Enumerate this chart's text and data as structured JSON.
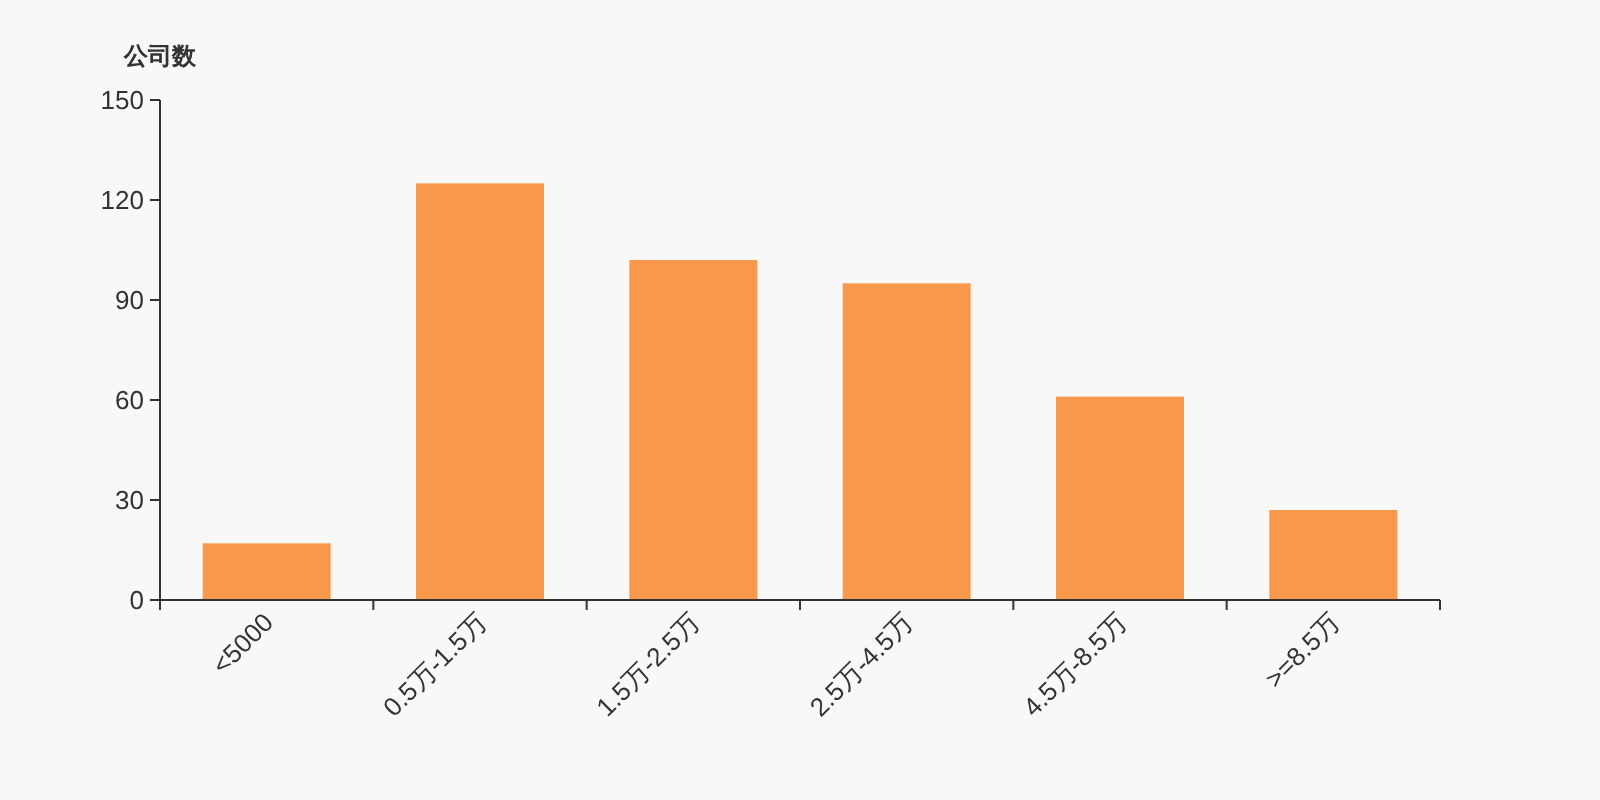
{
  "chart_data": {
    "type": "bar",
    "ylabel": "公司数",
    "categories": [
      "<5000",
      "0.5万-1.5万",
      "1.5万-2.5万",
      "2.5万-4.5万",
      "4.5万-8.5万",
      ">=8.5万"
    ],
    "values": [
      17,
      125,
      102,
      95,
      61,
      27
    ],
    "color": "#f7984a",
    "ylim": [
      0,
      150
    ],
    "yticks": [
      0,
      30,
      60,
      90,
      120,
      150
    ],
    "grid": false
  }
}
